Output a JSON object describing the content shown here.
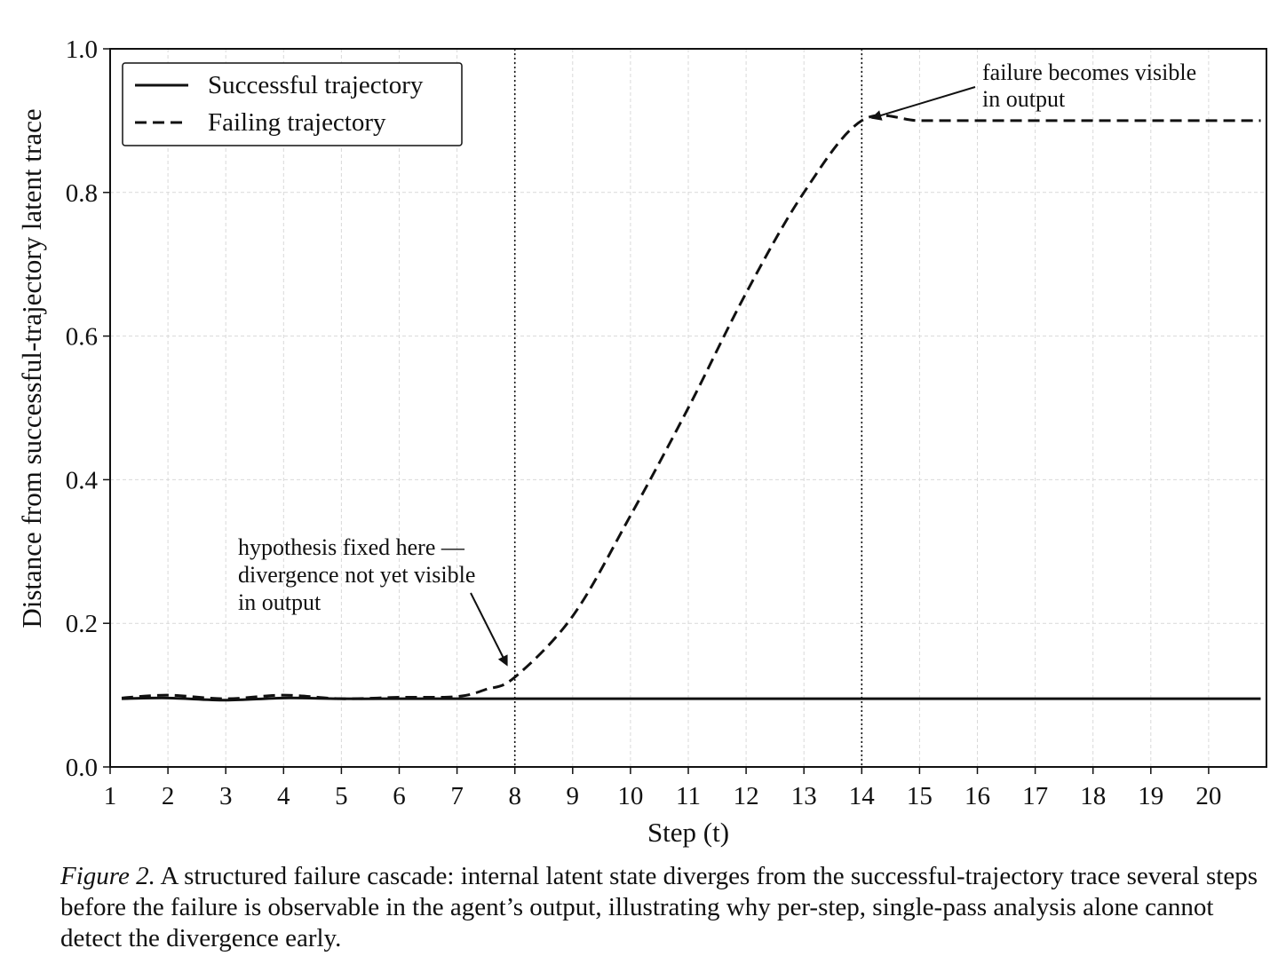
{
  "chart_data": {
    "type": "line",
    "title": "",
    "xlabel": "Step (t)",
    "ylabel": "Distance from successful-trajectory latent trace",
    "xlim": [
      1,
      21
    ],
    "ylim": [
      0,
      1.0
    ],
    "x_ticks": [
      1,
      2,
      3,
      4,
      5,
      6,
      7,
      8,
      9,
      10,
      11,
      12,
      13,
      14,
      15,
      16,
      17,
      18,
      19,
      20
    ],
    "y_ticks": [
      "0.0",
      "0.2",
      "0.4",
      "0.6",
      "0.8",
      "1.0"
    ],
    "grid": true,
    "legend_position": "top-left",
    "series": [
      {
        "name": "Successful trajectory",
        "style": "solid",
        "color": "#111111",
        "x": [
          1.2,
          2,
          3,
          4,
          5,
          6,
          7,
          8,
          9,
          10,
          11,
          12,
          13,
          14,
          15,
          16,
          17,
          18,
          19,
          20,
          20.9
        ],
        "y": [
          0.095,
          0.096,
          0.093,
          0.096,
          0.095,
          0.095,
          0.095,
          0.095,
          0.095,
          0.095,
          0.095,
          0.095,
          0.095,
          0.095,
          0.095,
          0.095,
          0.095,
          0.095,
          0.095,
          0.095,
          0.095
        ]
      },
      {
        "name": "Failing trajectory",
        "style": "dashed",
        "color": "#111111",
        "x": [
          1.2,
          2,
          3,
          4,
          5,
          6,
          7,
          7.5,
          8,
          9,
          10,
          11,
          12,
          13,
          14,
          15,
          16,
          17,
          18,
          19,
          20,
          20.9
        ],
        "y": [
          0.096,
          0.1,
          0.095,
          0.1,
          0.095,
          0.097,
          0.098,
          0.108,
          0.125,
          0.21,
          0.35,
          0.5,
          0.66,
          0.8,
          0.9,
          0.9,
          0.9,
          0.9,
          0.9,
          0.9,
          0.9,
          0.9
        ]
      }
    ],
    "vertical_markers": [
      8,
      14
    ],
    "annotations": [
      {
        "lines": [
          "hypothesis fixed here —",
          "divergence not yet visible",
          "in output"
        ],
        "points_to": [
          8,
          0.125
        ]
      },
      {
        "lines": [
          "failure becomes visible",
          "in output"
        ],
        "points_to": [
          14,
          0.9
        ]
      }
    ]
  },
  "caption": {
    "label": "Figure 2.",
    "text": "A structured failure cascade: internal latent state diverges from the successful-trajectory trace several steps before the failure is observable in the agent’s output, illustrating why per-step, single-pass analysis alone cannot detect the divergence early."
  }
}
